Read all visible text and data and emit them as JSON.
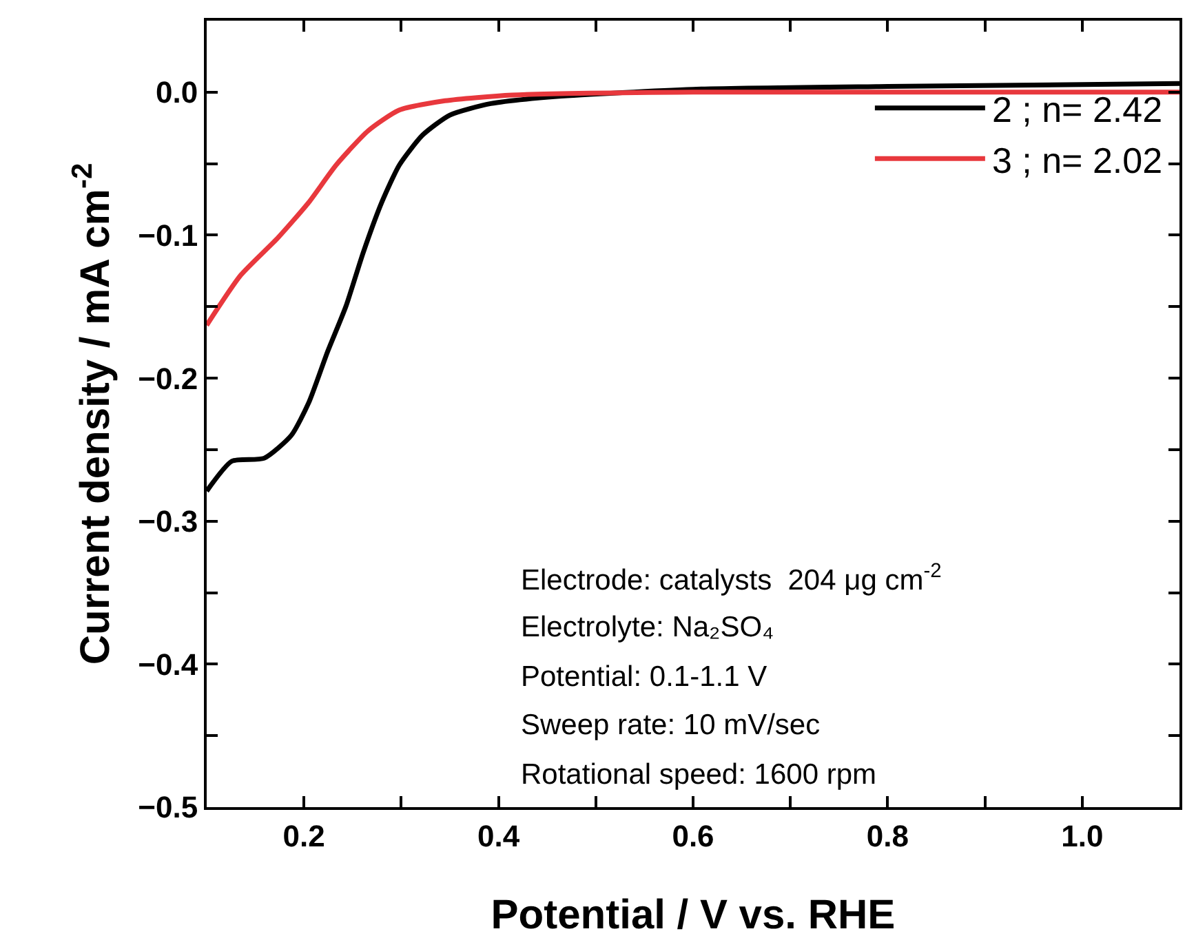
{
  "chart_data": {
    "type": "line",
    "xlabel": "Potential / V vs. RHE",
    "ylabel": "Current density / mA cm$^{-2}$",
    "xlim": [
      0.1,
      1.1
    ],
    "ylim": [
      -0.5,
      0.05
    ],
    "xticks": [
      {
        "value": 0.2,
        "label": "0.2"
      },
      {
        "value": 0.3,
        "label": null
      },
      {
        "value": 0.4,
        "label": "0.4"
      },
      {
        "value": 0.5,
        "label": null
      },
      {
        "value": 0.6,
        "label": "0.6"
      },
      {
        "value": 0.7,
        "label": null
      },
      {
        "value": 0.8,
        "label": "0.8"
      },
      {
        "value": 0.9,
        "label": null
      },
      {
        "value": 1.0,
        "label": "1.0"
      }
    ],
    "yticks": [
      {
        "value": -0.5,
        "label": "−0.5"
      },
      {
        "value": -0.45,
        "label": null
      },
      {
        "value": -0.4,
        "label": "−0.4"
      },
      {
        "value": -0.35,
        "label": null
      },
      {
        "value": -0.3,
        "label": "−0.3"
      },
      {
        "value": -0.25,
        "label": null
      },
      {
        "value": -0.2,
        "label": "−0.2"
      },
      {
        "value": -0.15,
        "label": null
      },
      {
        "value": -0.1,
        "label": "−0.1"
      },
      {
        "value": -0.05,
        "label": null
      },
      {
        "value": 0,
        "label": "0.0"
      }
    ],
    "legend": "top right",
    "grid": false,
    "marker": "none",
    "line_style": "solid",
    "series": [
      {
        "name": "2 ; n= 2.42",
        "color": "#000000",
        "x": [
          0.1,
          0.126,
          0.159,
          0.187,
          0.205,
          0.224,
          0.243,
          0.261,
          0.28,
          0.298,
          0.322,
          0.35,
          0.392,
          0.46,
          0.6,
          0.8,
          1.1
        ],
        "values": [
          -0.279,
          -0.258,
          -0.256,
          -0.24,
          -0.217,
          -0.182,
          -0.15,
          -0.112,
          -0.077,
          -0.051,
          -0.03,
          -0.016,
          -0.008,
          -0.003,
          0.002,
          0.004,
          0.006
        ]
      },
      {
        "name": "3 ; n= 2.02",
        "color": "#e8383d",
        "x": [
          0.1,
          0.135,
          0.173,
          0.205,
          0.233,
          0.266,
          0.298,
          0.345,
          0.414,
          0.6,
          0.8,
          1.1
        ],
        "values": [
          -0.163,
          -0.128,
          -0.102,
          -0.077,
          -0.051,
          -0.027,
          -0.0125,
          -0.006,
          -0.002,
          0,
          0,
          0
        ]
      }
    ],
    "annotations": [
      "Electrode: catalysts  204 μg cm$^{-2}$",
      "Electrolyte: Na₂SO₄",
      "Potential: 0.1-1.1 V",
      "Sweep rate: 10 mV/sec",
      "Rotational speed: 1600 rpm"
    ]
  }
}
